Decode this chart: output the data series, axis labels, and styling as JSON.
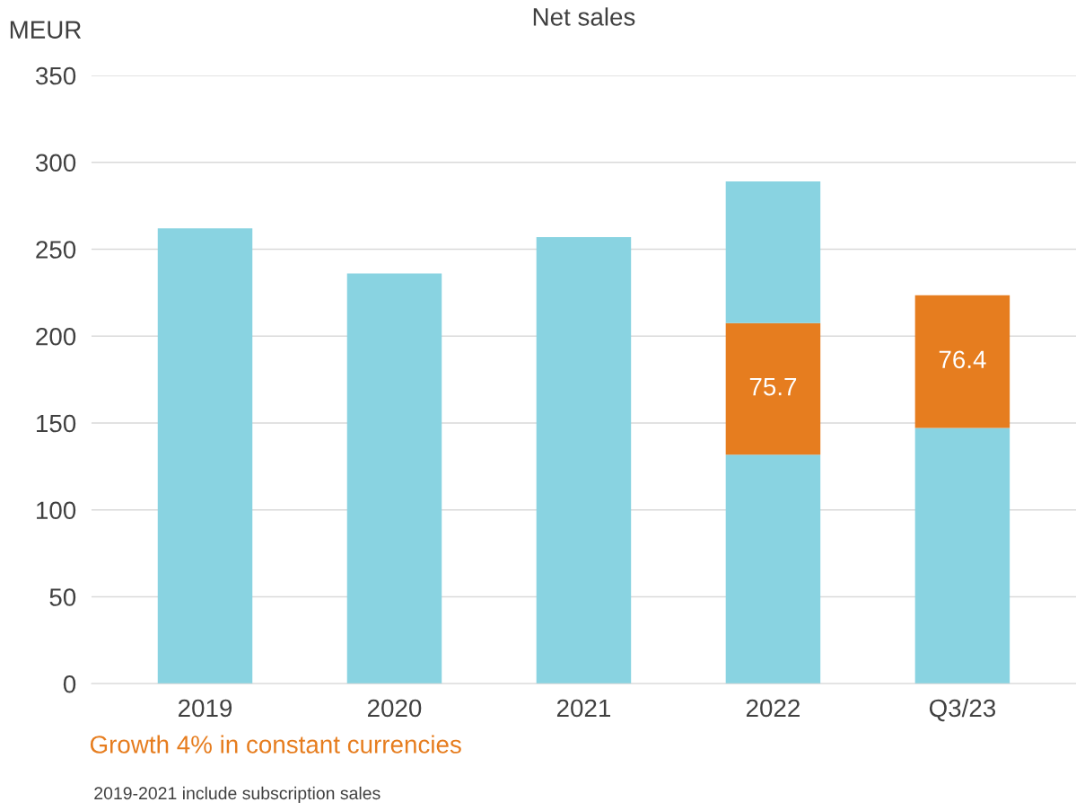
{
  "chart_data": {
    "type": "bar",
    "title": "Net sales",
    "ylabel": "MEUR",
    "categories": [
      "2019",
      "2020",
      "2021",
      "2022",
      "Q3/23"
    ],
    "stacked": true,
    "series": [
      {
        "color": "#89d3e1",
        "values": [
          262,
          236,
          257,
          131.8,
          147.1
        ]
      },
      {
        "color": "#e67d1f",
        "values": [
          null,
          null,
          null,
          75.7,
          76.4
        ],
        "value_labels": [
          null,
          null,
          null,
          "75.7",
          "76.4"
        ]
      },
      {
        "color": "#89d3e1",
        "values": [
          null,
          null,
          null,
          81.5,
          null
        ]
      }
    ],
    "ylim": [
      0,
      350
    ],
    "yticks": [
      0,
      50,
      100,
      150,
      200,
      250,
      300,
      350
    ],
    "grid": "y",
    "annotations": [
      "Growth 4% in constant currencies",
      "2019-2021 include subscription sales"
    ]
  }
}
